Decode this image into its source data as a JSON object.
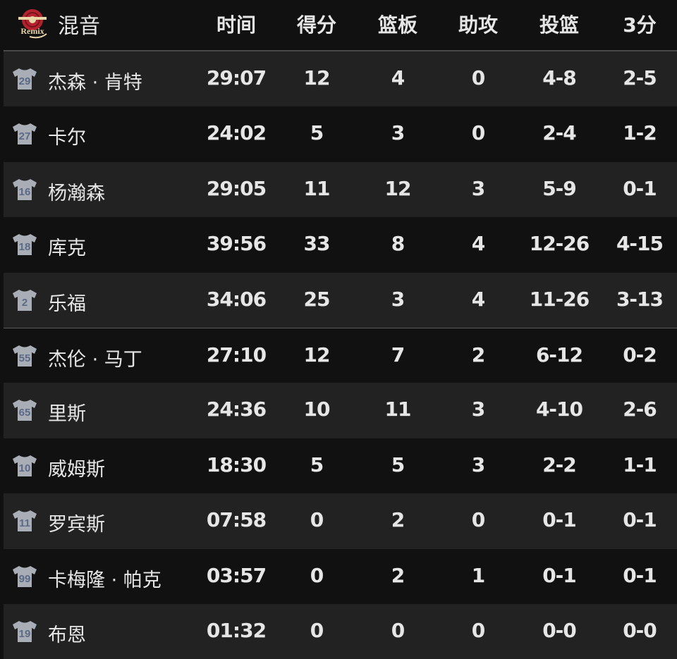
{
  "header": {
    "logo_text": "Remix",
    "team": "混音",
    "columns": [
      "时间",
      "得分",
      "篮板",
      "助攻",
      "投篮",
      "3分"
    ]
  },
  "colors": {
    "row_odd": "#222222",
    "row_even": "#111111",
    "jersey": "#a9adb5",
    "jersey_number": "#5c6a86",
    "logo_red": "#b3232f",
    "logo_cream": "#e8d6a8"
  },
  "players": [
    {
      "number": "29",
      "name": "杰森 · 肯特",
      "stats": [
        "29:07",
        "12",
        "4",
        "0",
        "4-8",
        "2-5"
      ]
    },
    {
      "number": "27",
      "name": "卡尔",
      "stats": [
        "24:02",
        "5",
        "3",
        "0",
        "2-4",
        "1-2"
      ]
    },
    {
      "number": "16",
      "name": "杨瀚森",
      "stats": [
        "29:05",
        "11",
        "12",
        "3",
        "5-9",
        "0-1"
      ]
    },
    {
      "number": "18",
      "name": "库克",
      "stats": [
        "39:56",
        "33",
        "8",
        "4",
        "12-26",
        "4-15"
      ]
    },
    {
      "number": "2",
      "name": "乐福",
      "stats": [
        "34:06",
        "25",
        "3",
        "4",
        "11-26",
        "3-13"
      ]
    },
    {
      "number": "55",
      "name": "杰伦 · 马丁",
      "stats": [
        "27:10",
        "12",
        "7",
        "2",
        "6-12",
        "0-2"
      ]
    },
    {
      "number": "65",
      "name": "里斯",
      "stats": [
        "24:36",
        "10",
        "11",
        "3",
        "4-10",
        "2-6"
      ]
    },
    {
      "number": "10",
      "name": "威姆斯",
      "stats": [
        "18:30",
        "5",
        "5",
        "3",
        "2-2",
        "1-1"
      ]
    },
    {
      "number": "11",
      "name": "罗宾斯",
      "stats": [
        "07:58",
        "0",
        "2",
        "0",
        "0-1",
        "0-1"
      ]
    },
    {
      "number": "99",
      "name": "卡梅隆 · 帕克",
      "stats": [
        "03:57",
        "0",
        "2",
        "1",
        "0-1",
        "0-1"
      ]
    },
    {
      "number": "19",
      "name": "布恩",
      "stats": [
        "01:32",
        "0",
        "0",
        "0",
        "0-0",
        "0-0"
      ]
    }
  ]
}
